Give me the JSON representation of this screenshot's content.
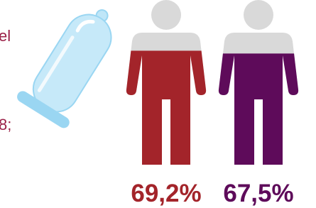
{
  "side_text": [
    "el",
    "8;"
  ],
  "chart_data": {
    "type": "pictograph",
    "values": [
      69.2,
      67.5
    ],
    "value_labels": [
      "69,2%",
      "67,5%"
    ],
    "colors": [
      "#a3242a",
      "#5e0b5a"
    ],
    "base_color": "#d9d9d9",
    "ylim": [
      0,
      100
    ]
  }
}
